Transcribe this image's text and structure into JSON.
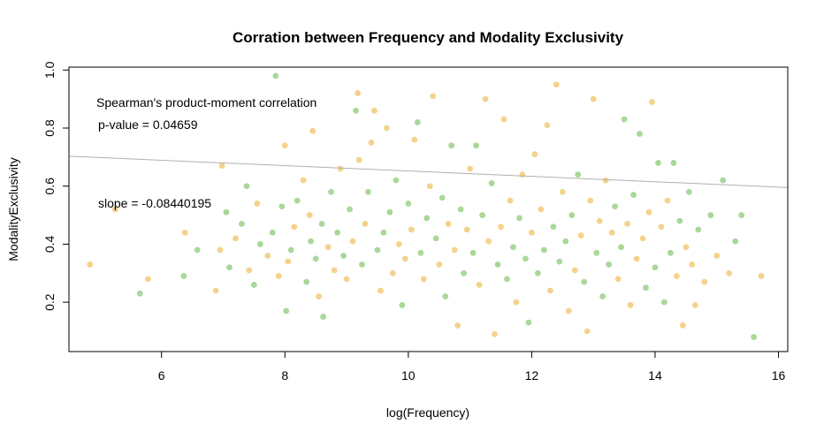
{
  "chart_data": {
    "type": "scatter",
    "title": "Corration between Frequency and Modality Exclusivity",
    "xlabel": "log(Frequency)",
    "ylabel": "ModalityExclusivity",
    "xlim": [
      4.5,
      16.15
    ],
    "ylim": [
      0.03,
      1.01
    ],
    "x_ticks": [
      6,
      8,
      10,
      12,
      14,
      16
    ],
    "y_ticks": [
      0.2,
      0.4,
      0.6,
      0.8,
      1.0
    ],
    "x_tick_labels": [
      "6",
      "8",
      "10",
      "12",
      "14",
      "16"
    ],
    "y_tick_labels": [
      "0.2",
      "0.4",
      "0.6",
      "0.8",
      "1.0"
    ],
    "grid": false,
    "colors": {
      "series_a": "#f5d28b",
      "series_b": "#a9d89a",
      "regression": "#b0b0b0"
    },
    "regression_line": {
      "intercept": 0.83,
      "slope": -0.08440195
    },
    "annotations": {
      "line1": "Spearman's product-moment correlation",
      "line2": "p-value = 0.04659",
      "line3": "slope = -0.08440195"
    },
    "points": [
      [
        4.84,
        0.33,
        0
      ],
      [
        5.25,
        0.52,
        0
      ],
      [
        5.65,
        0.23,
        1
      ],
      [
        5.78,
        0.28,
        0
      ],
      [
        6.36,
        0.29,
        1
      ],
      [
        6.38,
        0.44,
        0
      ],
      [
        6.58,
        0.38,
        1
      ],
      [
        6.88,
        0.24,
        0
      ],
      [
        6.95,
        0.38,
        0
      ],
      [
        6.98,
        0.67,
        0
      ],
      [
        7.05,
        0.51,
        1
      ],
      [
        7.1,
        0.32,
        1
      ],
      [
        7.2,
        0.42,
        0
      ],
      [
        7.3,
        0.47,
        1
      ],
      [
        7.38,
        0.6,
        1
      ],
      [
        7.42,
        0.31,
        0
      ],
      [
        7.5,
        0.26,
        1
      ],
      [
        7.55,
        0.54,
        0
      ],
      [
        7.6,
        0.4,
        1
      ],
      [
        7.72,
        0.36,
        0
      ],
      [
        7.8,
        0.44,
        1
      ],
      [
        7.85,
        0.98,
        1
      ],
      [
        7.9,
        0.29,
        0
      ],
      [
        7.95,
        0.53,
        1
      ],
      [
        8.0,
        0.74,
        0
      ],
      [
        8.02,
        0.17,
        1
      ],
      [
        8.05,
        0.34,
        0
      ],
      [
        8.1,
        0.38,
        1
      ],
      [
        8.15,
        0.46,
        0
      ],
      [
        8.2,
        0.55,
        1
      ],
      [
        8.3,
        0.62,
        0
      ],
      [
        8.35,
        0.27,
        1
      ],
      [
        8.4,
        0.5,
        0
      ],
      [
        8.42,
        0.41,
        1
      ],
      [
        8.45,
        0.79,
        0
      ],
      [
        8.5,
        0.35,
        1
      ],
      [
        8.55,
        0.22,
        0
      ],
      [
        8.6,
        0.47,
        1
      ],
      [
        8.62,
        0.15,
        1
      ],
      [
        8.7,
        0.39,
        0
      ],
      [
        8.75,
        0.58,
        1
      ],
      [
        8.8,
        0.31,
        0
      ],
      [
        8.85,
        0.44,
        1
      ],
      [
        8.9,
        0.66,
        0
      ],
      [
        8.95,
        0.36,
        1
      ],
      [
        9.0,
        0.28,
        0
      ],
      [
        9.05,
        0.52,
        1
      ],
      [
        9.1,
        0.41,
        0
      ],
      [
        9.15,
        0.86,
        1
      ],
      [
        9.18,
        0.92,
        0
      ],
      [
        9.2,
        0.69,
        0
      ],
      [
        9.25,
        0.33,
        1
      ],
      [
        9.3,
        0.47,
        0
      ],
      [
        9.35,
        0.58,
        1
      ],
      [
        9.4,
        0.75,
        0
      ],
      [
        9.45,
        0.86,
        0
      ],
      [
        9.5,
        0.38,
        1
      ],
      [
        9.55,
        0.24,
        0
      ],
      [
        9.6,
        0.44,
        1
      ],
      [
        9.65,
        0.8,
        0
      ],
      [
        9.7,
        0.51,
        1
      ],
      [
        9.75,
        0.3,
        0
      ],
      [
        9.8,
        0.62,
        1
      ],
      [
        9.85,
        0.4,
        0
      ],
      [
        9.9,
        0.19,
        1
      ],
      [
        9.95,
        0.35,
        0
      ],
      [
        10.0,
        0.54,
        1
      ],
      [
        10.05,
        0.45,
        0
      ],
      [
        10.1,
        0.76,
        0
      ],
      [
        10.15,
        0.82,
        1
      ],
      [
        10.2,
        0.37,
        1
      ],
      [
        10.25,
        0.28,
        0
      ],
      [
        10.3,
        0.49,
        1
      ],
      [
        10.35,
        0.6,
        0
      ],
      [
        10.4,
        0.91,
        0
      ],
      [
        10.45,
        0.42,
        1
      ],
      [
        10.5,
        0.33,
        0
      ],
      [
        10.55,
        0.56,
        1
      ],
      [
        10.6,
        0.22,
        1
      ],
      [
        10.65,
        0.47,
        0
      ],
      [
        10.7,
        0.74,
        1
      ],
      [
        10.75,
        0.38,
        0
      ],
      [
        10.8,
        0.12,
        0
      ],
      [
        10.85,
        0.52,
        1
      ],
      [
        10.9,
        0.3,
        1
      ],
      [
        10.95,
        0.45,
        0
      ],
      [
        11.0,
        0.66,
        0
      ],
      [
        11.05,
        0.37,
        1
      ],
      [
        11.1,
        0.74,
        1
      ],
      [
        11.15,
        0.26,
        0
      ],
      [
        11.2,
        0.5,
        1
      ],
      [
        11.25,
        0.9,
        0
      ],
      [
        11.3,
        0.41,
        0
      ],
      [
        11.35,
        0.61,
        1
      ],
      [
        11.4,
        0.09,
        0
      ],
      [
        11.45,
        0.33,
        1
      ],
      [
        11.5,
        0.46,
        0
      ],
      [
        11.55,
        0.83,
        0
      ],
      [
        11.6,
        0.28,
        1
      ],
      [
        11.65,
        0.55,
        0
      ],
      [
        11.7,
        0.39,
        1
      ],
      [
        11.75,
        0.2,
        0
      ],
      [
        11.8,
        0.49,
        1
      ],
      [
        11.85,
        0.64,
        0
      ],
      [
        11.9,
        0.35,
        1
      ],
      [
        11.95,
        0.13,
        1
      ],
      [
        12.0,
        0.44,
        0
      ],
      [
        12.05,
        0.71,
        0
      ],
      [
        12.1,
        0.3,
        1
      ],
      [
        12.15,
        0.52,
        0
      ],
      [
        12.2,
        0.38,
        1
      ],
      [
        12.25,
        0.81,
        0
      ],
      [
        12.3,
        0.24,
        0
      ],
      [
        12.35,
        0.46,
        1
      ],
      [
        12.4,
        0.95,
        0
      ],
      [
        12.45,
        0.34,
        1
      ],
      [
        12.5,
        0.58,
        0
      ],
      [
        12.55,
        0.41,
        1
      ],
      [
        12.6,
        0.17,
        0
      ],
      [
        12.65,
        0.5,
        1
      ],
      [
        12.7,
        0.31,
        0
      ],
      [
        12.75,
        0.64,
        1
      ],
      [
        12.8,
        0.43,
        0
      ],
      [
        12.85,
        0.27,
        1
      ],
      [
        12.9,
        0.1,
        0
      ],
      [
        12.95,
        0.55,
        0
      ],
      [
        13.0,
        0.9,
        0
      ],
      [
        13.05,
        0.37,
        1
      ],
      [
        13.1,
        0.48,
        0
      ],
      [
        13.15,
        0.22,
        1
      ],
      [
        13.2,
        0.62,
        0
      ],
      [
        13.25,
        0.33,
        1
      ],
      [
        13.3,
        0.44,
        0
      ],
      [
        13.35,
        0.53,
        1
      ],
      [
        13.4,
        0.28,
        0
      ],
      [
        13.45,
        0.39,
        1
      ],
      [
        13.5,
        0.83,
        1
      ],
      [
        13.55,
        0.47,
        0
      ],
      [
        13.6,
        0.19,
        0
      ],
      [
        13.65,
        0.57,
        1
      ],
      [
        13.7,
        0.35,
        0
      ],
      [
        13.75,
        0.78,
        1
      ],
      [
        13.8,
        0.42,
        0
      ],
      [
        13.85,
        0.25,
        1
      ],
      [
        13.9,
        0.51,
        0
      ],
      [
        13.95,
        0.89,
        0
      ],
      [
        14.0,
        0.32,
        1
      ],
      [
        14.05,
        0.68,
        1
      ],
      [
        14.1,
        0.46,
        0
      ],
      [
        14.15,
        0.2,
        1
      ],
      [
        14.2,
        0.55,
        0
      ],
      [
        14.25,
        0.37,
        1
      ],
      [
        14.3,
        0.68,
        1
      ],
      [
        14.35,
        0.29,
        0
      ],
      [
        14.4,
        0.48,
        1
      ],
      [
        14.45,
        0.12,
        0
      ],
      [
        14.5,
        0.39,
        0
      ],
      [
        14.55,
        0.58,
        1
      ],
      [
        14.6,
        0.33,
        0
      ],
      [
        14.65,
        0.19,
        0
      ],
      [
        14.7,
        0.45,
        1
      ],
      [
        14.8,
        0.27,
        0
      ],
      [
        14.9,
        0.5,
        1
      ],
      [
        15.0,
        0.36,
        0
      ],
      [
        15.1,
        0.62,
        1
      ],
      [
        15.2,
        0.3,
        0
      ],
      [
        15.3,
        0.41,
        1
      ],
      [
        15.4,
        0.5,
        1
      ],
      [
        15.6,
        0.08,
        1
      ],
      [
        15.72,
        0.29,
        0
      ]
    ]
  }
}
